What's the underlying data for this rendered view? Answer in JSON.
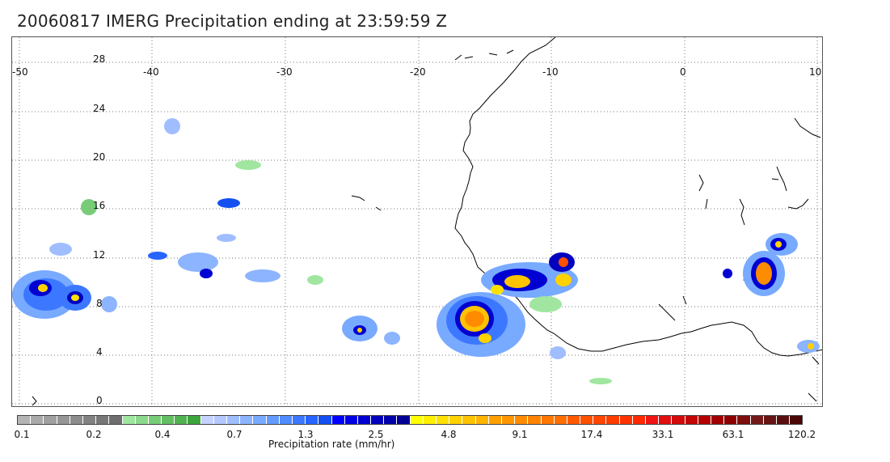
{
  "title": "20060817 IMERG Precipitation ending at 23:59:59 Z",
  "map": {
    "lon_labels": [
      "-50",
      "-40",
      "-30",
      "-20",
      "-10",
      "0",
      "10"
    ],
    "lat_labels": [
      "28",
      "24",
      "20",
      "16",
      "12",
      "8",
      "4",
      "0"
    ],
    "coastline_color": "#000000",
    "grid_style": "dotted",
    "grid": true
  },
  "colorbar": {
    "title": "Precipitation rate (mm/hr)",
    "colors": [
      "#b4b4b4",
      "#aaaaaa",
      "#a0a0a0",
      "#969696",
      "#8c8c8c",
      "#828282",
      "#787878",
      "#6e6e6e",
      "#a0e6a0",
      "#8cd98c",
      "#78cc78",
      "#64bf64",
      "#50b250",
      "#3ca53c",
      "#c8d2ff",
      "#b4c8ff",
      "#a0beff",
      "#8cb4ff",
      "#78aaff",
      "#649bff",
      "#508cff",
      "#3c78ff",
      "#2864ff",
      "#1450f0",
      "#0000ff",
      "#0000e6",
      "#0000d2",
      "#0000be",
      "#0000aa",
      "#000096",
      "#ffff00",
      "#fff000",
      "#ffe100",
      "#ffd200",
      "#ffc300",
      "#ffb400",
      "#ffa000",
      "#ff9600",
      "#ff8c00",
      "#ff8200",
      "#ff7800",
      "#ff6e00",
      "#ff5a00",
      "#ff5000",
      "#ff4600",
      "#ff3c00",
      "#ff3200",
      "#ff2800",
      "#f01414",
      "#e10f0f",
      "#d20a0a",
      "#c30505",
      "#b40000",
      "#a00000",
      "#8c0000",
      "#7f0f0f",
      "#731919",
      "#661414",
      "#5a0f0f",
      "#4b0505"
    ],
    "tick_labels": [
      "0.1",
      "0.2",
      "0.4",
      "0.7",
      "1.3",
      "2.5",
      "4.8",
      "9.1",
      "17.4",
      "33.1",
      "63.1",
      "120.2"
    ]
  }
}
